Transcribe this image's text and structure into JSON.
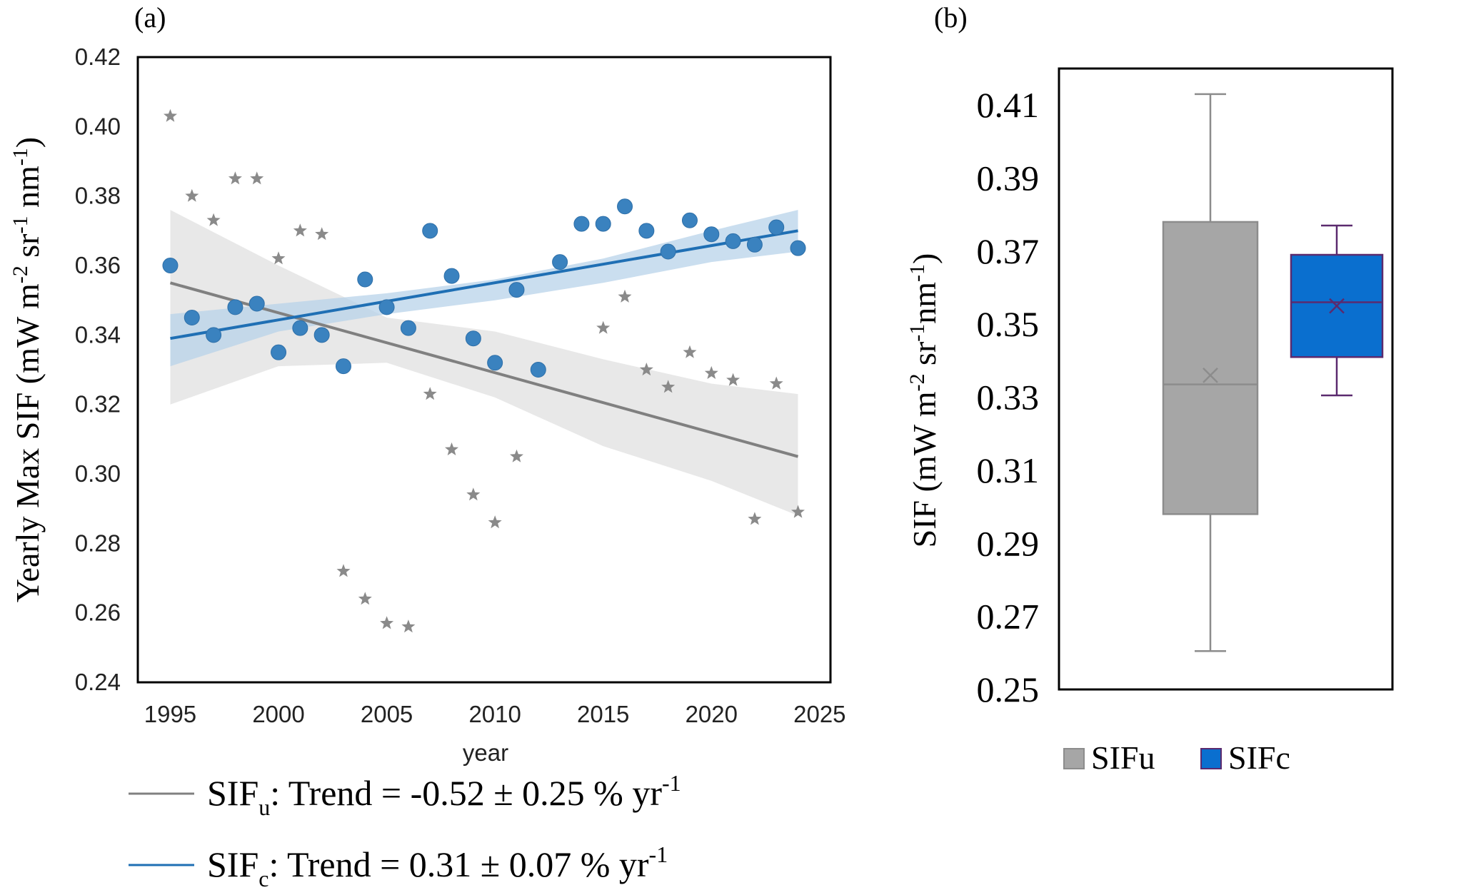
{
  "colors": {
    "sifu": "#808080",
    "sifu_marker": "#8a8a8a",
    "sifu_band": "#d9d9d9",
    "sifc": "#1f6fb4",
    "sifc_marker": "#3a82bf",
    "sifc_band": "#b8d3ea",
    "box_sifu_fill": "#a6a6a6",
    "box_sifu_line": "#8c8c8c",
    "box_sifc_fill": "#0a6fcf",
    "box_sifc_line": "#5b2a6e"
  },
  "chart_data": [
    {
      "panel": "(a)",
      "type": "scatter",
      "xlabel": "year",
      "ylabel": {
        "main": "Yearly Max SIF (mW m",
        "sup1": "-2",
        "mid1": " sr",
        "sup2": "-1",
        "mid2": " nm",
        "sup3": "-1",
        "end": ")"
      },
      "xlim": [
        1993.5,
        2025.5
      ],
      "ylim": [
        0.24,
        0.42
      ],
      "xticks": [
        "1995",
        "2000",
        "2005",
        "2010",
        "2015",
        "2020",
        "2025"
      ],
      "xtick_values": [
        1995,
        2000,
        2005,
        2010,
        2015,
        2020,
        2025
      ],
      "yticks": [
        "0.24",
        "0.26",
        "0.28",
        "0.30",
        "0.32",
        "0.34",
        "0.36",
        "0.38",
        "0.40",
        "0.42"
      ],
      "ytick_values": [
        0.24,
        0.26,
        0.28,
        0.3,
        0.32,
        0.34,
        0.36,
        0.38,
        0.4,
        0.42
      ],
      "grid": false,
      "series": [
        {
          "key": "sifu",
          "marker": "star",
          "x": [
            1995,
            1996,
            1997,
            1998,
            1999,
            2000,
            2001,
            2002,
            2003,
            2004,
            2005,
            2006,
            2007,
            2008,
            2009,
            2010,
            2011,
            2012,
            2013,
            2014,
            2015,
            2016,
            2017,
            2018,
            2019,
            2020,
            2021,
            2022,
            2023,
            2024
          ],
          "y": [
            0.403,
            0.38,
            0.373,
            0.385,
            0.385,
            0.362,
            0.37,
            0.369,
            0.272,
            0.264,
            0.257,
            0.256,
            0.323,
            0.307,
            0.294,
            0.286,
            0.305,
            0.33,
            0.361,
            0.372,
            0.342,
            0.351,
            0.33,
            0.325,
            0.335,
            0.329,
            0.327,
            0.287,
            0.326,
            0.289
          ],
          "trend": {
            "x": [
              1995,
              2024
            ],
            "y": [
              0.355,
              0.305
            ]
          },
          "ci": {
            "x": [
              1995,
              2000,
              2005,
              2010,
              2015,
              2020,
              2024
            ],
            "lower": [
              0.32,
              0.331,
              0.332,
              0.322,
              0.308,
              0.298,
              0.288
            ],
            "upper": [
              0.376,
              0.36,
              0.345,
              0.341,
              0.333,
              0.326,
              0.323
            ]
          }
        },
        {
          "key": "sifc",
          "marker": "circle",
          "x": [
            1995,
            1996,
            1997,
            1998,
            1999,
            2000,
            2001,
            2002,
            2003,
            2004,
            2005,
            2006,
            2007,
            2008,
            2009,
            2010,
            2011,
            2012,
            2013,
            2014,
            2015,
            2016,
            2017,
            2018,
            2019,
            2020,
            2021,
            2022,
            2023,
            2024
          ],
          "y": [
            0.36,
            0.345,
            0.34,
            0.348,
            0.349,
            0.335,
            0.342,
            0.34,
            0.331,
            0.356,
            0.348,
            0.342,
            0.37,
            0.357,
            0.339,
            0.332,
            0.353,
            0.33,
            0.361,
            0.372,
            0.372,
            0.377,
            0.37,
            0.364,
            0.373,
            0.369,
            0.367,
            0.366,
            0.371,
            0.365
          ],
          "trend": {
            "x": [
              1995,
              2024
            ],
            "y": [
              0.339,
              0.37
            ]
          },
          "ci": {
            "x": [
              1995,
              2000,
              2005,
              2010,
              2015,
              2020,
              2024
            ],
            "lower": [
              0.331,
              0.341,
              0.346,
              0.35,
              0.355,
              0.361,
              0.364
            ],
            "upper": [
              0.346,
              0.349,
              0.352,
              0.356,
              0.362,
              0.37,
              0.376
            ]
          }
        }
      ],
      "legend": [
        {
          "key": "sifu",
          "base": "SIF",
          "sub": "u",
          "text": ": Trend = -0.52 ± 0.25 % yr",
          "sup": "-1"
        },
        {
          "key": "sifc",
          "base": "SIF",
          "sub": "c",
          "text": ": Trend = 0.31 ± 0.07 % yr",
          "sup": "-1"
        }
      ]
    },
    {
      "panel": "(b)",
      "type": "box",
      "ylabel": {
        "main": "SIF (mW m",
        "sup1": "-2",
        "mid1": " sr",
        "sup2": "-1",
        "mid2": "nm",
        "sup3": "-1",
        "end": ")"
      },
      "ylim": [
        0.25,
        0.42
      ],
      "yticks": [
        "0.25",
        "0.27",
        "0.29",
        "0.31",
        "0.33",
        "0.35",
        "0.37",
        "0.39",
        "0.41"
      ],
      "ytick_values": [
        0.25,
        0.27,
        0.29,
        0.31,
        0.33,
        0.35,
        0.37,
        0.39,
        0.41
      ],
      "boxes": [
        {
          "key": "sifu",
          "name": "SIFu",
          "min": 0.2605,
          "q1": 0.298,
          "median": 0.3335,
          "mean": 0.336,
          "q3": 0.378,
          "max": 0.413
        },
        {
          "key": "sifc",
          "name": "SIFc",
          "min": 0.3305,
          "q1": 0.341,
          "median": 0.356,
          "mean": 0.355,
          "q3": 0.369,
          "max": 0.377
        }
      ]
    }
  ]
}
